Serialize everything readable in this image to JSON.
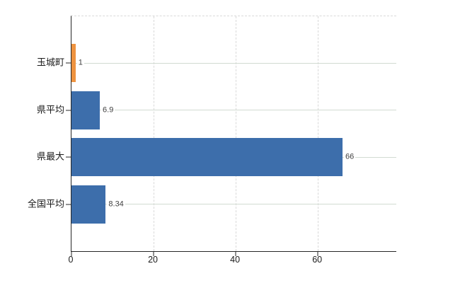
{
  "page": {
    "background": "#ffffff",
    "title": ""
  },
  "chart_data": {
    "type": "bar",
    "orientation": "horizontal",
    "title": "",
    "xlabel": "",
    "ylabel": "",
    "categories": [
      "玉城町",
      "県平均",
      "県最大",
      "全国平均"
    ],
    "series": [
      {
        "name": "value",
        "values": [
          1,
          6.9,
          66,
          8.34
        ]
      }
    ],
    "value_labels": [
      "1",
      "6.9",
      "66",
      "8.34"
    ],
    "bar_colors": [
      "#ee9340",
      "#3d6eab",
      "#3d6eab",
      "#3d6eab"
    ],
    "xlim": [
      0,
      79.1
    ],
    "xticks": [
      0,
      20,
      40,
      60
    ],
    "xtick_labels": [
      "0",
      "20",
      "40",
      "60"
    ],
    "grid": {
      "vertical": "dashed",
      "horizontal": "solid",
      "plot_top_border": "dashed"
    },
    "legend_position": "none",
    "colors": {
      "bar_blue": "#3d6eab",
      "bar_orange": "#ee9340",
      "axis": "#262626",
      "grid_vertical": "#d9d9d9",
      "grid_horizontal": "#d2dbd2",
      "value_label_text": "#404040",
      "category_label_text": "#1a1a1a",
      "background": "#ffffff"
    }
  }
}
